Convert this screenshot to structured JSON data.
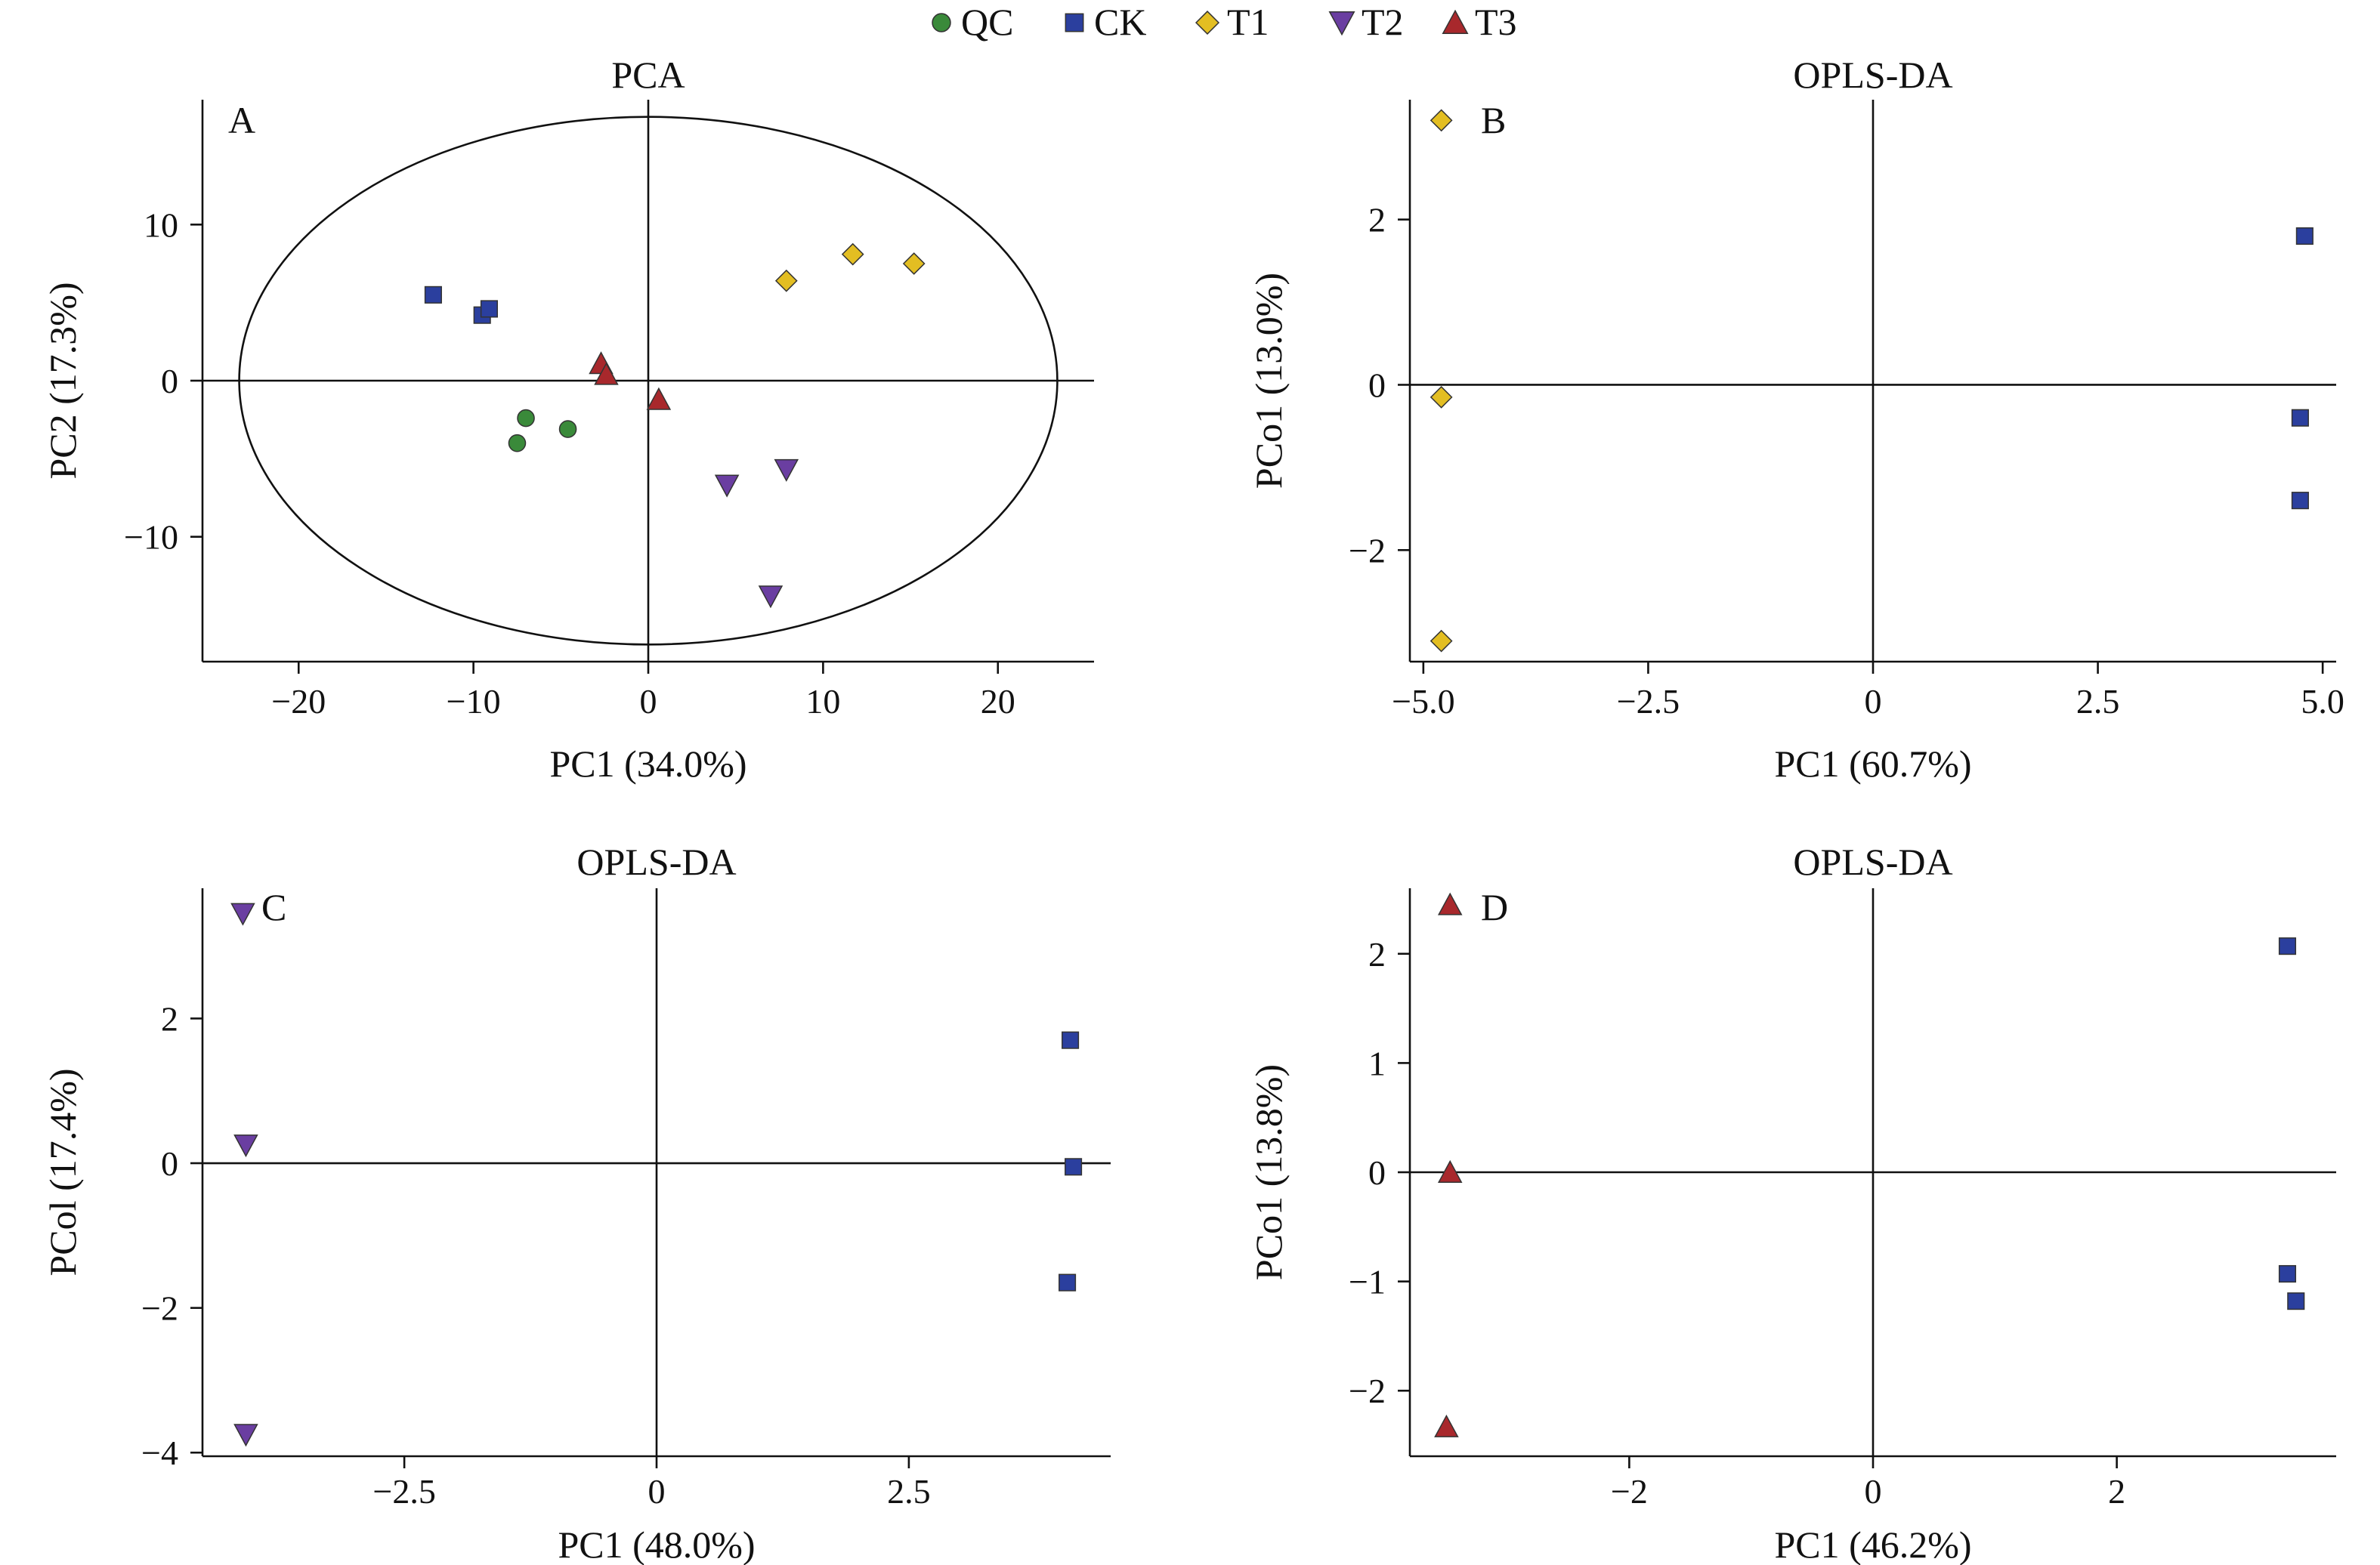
{
  "colors": {
    "QC": "#3a8a3a",
    "CK": "#2b3f9e",
    "T1": "#e3be22",
    "T2": "#6a3ea1",
    "T3": "#a8282c"
  },
  "legend": [
    {
      "group": "QC",
      "label": "QC",
      "marker": "circle"
    },
    {
      "group": "CK",
      "label": "CK",
      "marker": "square"
    },
    {
      "group": "T1",
      "label": "T1",
      "marker": "diamond"
    },
    {
      "group": "T2",
      "label": "T2",
      "marker": "triangle-down"
    },
    {
      "group": "T3",
      "label": "T3",
      "marker": "triangle-up"
    }
  ],
  "chart_data": [
    {
      "type": "scatter",
      "panel": "A",
      "title": "PCA",
      "xlabel": "PC1 (34.0%)",
      "ylabel": "PC2 (17.3%)",
      "xlim": [
        -25.5,
        25.5
      ],
      "ylim": [
        -18,
        18
      ],
      "xticks": [
        -20,
        -10,
        0,
        10,
        20
      ],
      "xtick_labels": [
        "−20",
        "−10",
        "0",
        "10",
        "20"
      ],
      "yticks": [
        -10,
        0,
        10
      ],
      "ytick_labels": [
        "−10",
        "0",
        "10"
      ],
      "ellipse": {
        "cx": 0,
        "cy": 0,
        "rx": 23.4,
        "ry": 16.9
      },
      "series": [
        {
          "group": "QC",
          "points": [
            [
              -7.5,
              -4.0
            ],
            [
              -7.0,
              -2.4
            ],
            [
              -4.6,
              -3.1
            ]
          ]
        },
        {
          "group": "CK",
          "points": [
            [
              -12.3,
              5.5
            ],
            [
              -9.5,
              4.2
            ],
            [
              -9.1,
              4.6
            ]
          ]
        },
        {
          "group": "T1",
          "points": [
            [
              7.9,
              6.4
            ],
            [
              11.7,
              8.1
            ],
            [
              15.2,
              7.5
            ]
          ]
        },
        {
          "group": "T2",
          "points": [
            [
              4.5,
              -6.7
            ],
            [
              7.9,
              -5.7
            ],
            [
              7.0,
              -13.8
            ]
          ]
        },
        {
          "group": "T3",
          "points": [
            [
              -2.7,
              1.1
            ],
            [
              -2.4,
              0.4
            ],
            [
              0.6,
              -1.2
            ]
          ]
        }
      ]
    },
    {
      "type": "scatter",
      "panel": "B",
      "title": "OPLS-DA",
      "xlabel": "PC1 (60.7%)",
      "ylabel": "PCo1 (13.0%)",
      "xlim": [
        -5.15,
        5.15
      ],
      "ylim": [
        -3.35,
        3.45
      ],
      "xticks": [
        -5,
        -2.5,
        0,
        2.5,
        5
      ],
      "xtick_labels": [
        "−5.0",
        "−2.5",
        "0",
        "2.5",
        "5.0"
      ],
      "yticks": [
        -2,
        0,
        2
      ],
      "ytick_labels": [
        "−2",
        "0",
        "2"
      ],
      "series": [
        {
          "group": "T1",
          "points": [
            [
              -4.8,
              3.2
            ],
            [
              -4.8,
              -0.15
            ],
            [
              -4.8,
              -3.1
            ]
          ]
        },
        {
          "group": "CK",
          "points": [
            [
              4.8,
              1.8
            ],
            [
              4.75,
              -0.4
            ],
            [
              4.75,
              -1.4
            ]
          ]
        }
      ]
    },
    {
      "type": "scatter",
      "panel": "C",
      "title": "OPLS-DA",
      "xlabel": "PC1 (48.0%)",
      "ylabel": "PCol (17.4%)",
      "xlim": [
        -4.5,
        4.5
      ],
      "ylim": [
        -4.05,
        3.8
      ],
      "xticks": [
        -2.5,
        0,
        2.5
      ],
      "xtick_labels": [
        "−2.5",
        "0",
        "2.5"
      ],
      "yticks": [
        -4,
        -2,
        0,
        2
      ],
      "ytick_labels": [
        "−4",
        "−2",
        "0",
        "2"
      ],
      "series": [
        {
          "group": "T2",
          "points": [
            [
              -4.1,
              3.45
            ],
            [
              -4.07,
              0.25
            ],
            [
              -4.07,
              -3.75
            ]
          ]
        },
        {
          "group": "CK",
          "points": [
            [
              4.1,
              1.7
            ],
            [
              4.13,
              -0.05
            ],
            [
              4.07,
              -1.65
            ]
          ]
        }
      ]
    },
    {
      "type": "scatter",
      "panel": "D",
      "title": "OPLS-DA",
      "xlabel": "PC1 (46.2%)",
      "ylabel": "PCo1 (13.8%)",
      "xlim": [
        -3.8,
        3.8
      ],
      "ylim": [
        -2.6,
        2.6
      ],
      "xticks": [
        -2,
        0,
        2
      ],
      "xtick_labels": [
        "−2",
        "0",
        "2"
      ],
      "yticks": [
        -2,
        -1,
        0,
        1,
        2
      ],
      "ytick_labels": [
        "−2",
        "−1",
        "0",
        "1",
        "2"
      ],
      "series": [
        {
          "group": "T3",
          "points": [
            [
              -3.47,
              2.45
            ],
            [
              -3.47,
              0.0
            ],
            [
              -3.5,
              -2.33
            ]
          ]
        },
        {
          "group": "CK",
          "points": [
            [
              3.4,
              2.07
            ],
            [
              3.4,
              -0.93
            ],
            [
              3.47,
              -1.18
            ]
          ]
        }
      ]
    }
  ]
}
